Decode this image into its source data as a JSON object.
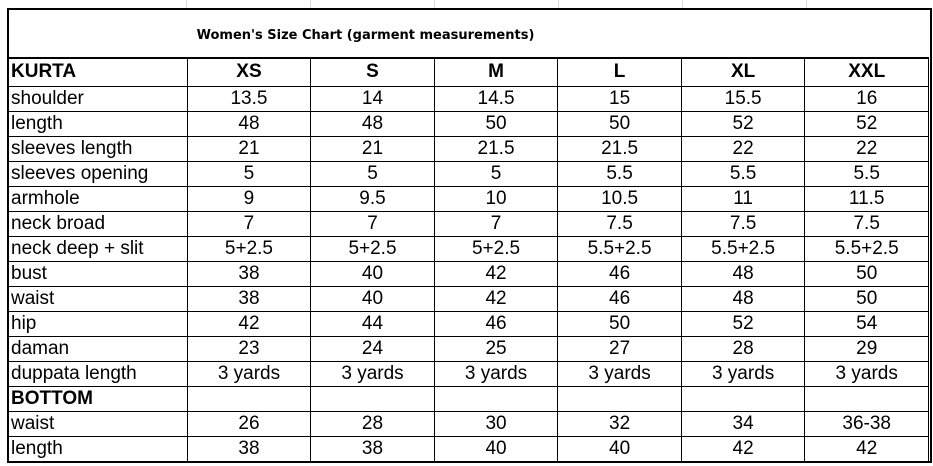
{
  "title": "Women's Size Chart (garment measurements)",
  "kurta": {
    "section_label": "KURTA",
    "sizes": [
      "XS",
      "S",
      "M",
      "L",
      "XL",
      "XXL"
    ],
    "rows": [
      {
        "label": "shoulder",
        "values": [
          "13.5",
          "14",
          "14.5",
          "15",
          "15.5",
          "16"
        ]
      },
      {
        "label": "length",
        "values": [
          "48",
          "48",
          "50",
          "50",
          "52",
          "52"
        ]
      },
      {
        "label": "sleeves length",
        "values": [
          "21",
          "21",
          "21.5",
          "21.5",
          "22",
          "22"
        ]
      },
      {
        "label": "sleeves opening",
        "values": [
          "5",
          "5",
          "5",
          "5.5",
          "5.5",
          "5.5"
        ]
      },
      {
        "label": "armhole",
        "values": [
          "9",
          "9.5",
          "10",
          "10.5",
          "11",
          "11.5"
        ]
      },
      {
        "label": "neck broad",
        "values": [
          "7",
          "7",
          "7",
          "7.5",
          "7.5",
          "7.5"
        ]
      },
      {
        "label": "neck deep + slit",
        "values": [
          "5+2.5",
          "5+2.5",
          "5+2.5",
          "5.5+2.5",
          "5.5+2.5",
          "5.5+2.5"
        ]
      },
      {
        "label": "bust",
        "values": [
          "38",
          "40",
          "42",
          "46",
          "48",
          "50"
        ]
      },
      {
        "label": "waist",
        "values": [
          "38",
          "40",
          "42",
          "46",
          "48",
          "50"
        ]
      },
      {
        "label": "hip",
        "values": [
          "42",
          "44",
          "46",
          "50",
          "52",
          "54"
        ]
      },
      {
        "label": "daman",
        "values": [
          "23",
          "24",
          "25",
          "27",
          "28",
          "29"
        ]
      },
      {
        "label": "duppata length",
        "values": [
          "3 yards",
          "3 yards",
          "3 yards",
          "3 yards",
          "3 yards",
          "3 yards"
        ]
      }
    ]
  },
  "bottom": {
    "section_label": "BOTTOM",
    "rows": [
      {
        "label": "waist",
        "values": [
          "26",
          "28",
          "30",
          "32",
          "34",
          "36-38"
        ]
      },
      {
        "label": "length",
        "values": [
          "38",
          "38",
          "40",
          "40",
          "42",
          "42"
        ]
      }
    ]
  }
}
